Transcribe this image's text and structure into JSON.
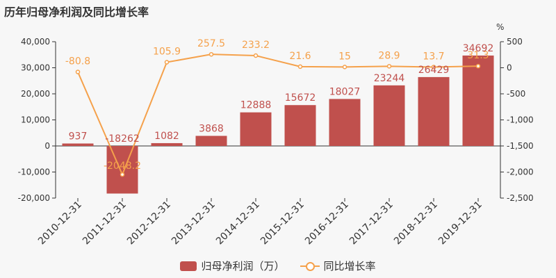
{
  "title": "历年归母净利润及同比增长率",
  "colors": {
    "bar": "#c0504d",
    "line": "#f5a14b",
    "axis": "#333333",
    "background": "#f7f7f7"
  },
  "legend": {
    "bar_label": "归母净利润（万）",
    "line_label": "同比增长率"
  },
  "chart_data": {
    "type": "bar",
    "title": "历年归母净利润及同比增长率",
    "categories": [
      "2010-12-31",
      "2011-12-31",
      "2012-12-31",
      "2013-12-31",
      "2014-12-31",
      "2015-12-31",
      "2016-12-31",
      "2017-12-31",
      "2018-12-31",
      "2019-12-31"
    ],
    "series": [
      {
        "name": "归母净利润（万）",
        "type": "bar",
        "axis": "left",
        "values": [
          937,
          -18262,
          1082,
          3868,
          12888,
          15672,
          18027,
          23244,
          26429,
          34692
        ]
      },
      {
        "name": "同比增长率",
        "type": "line",
        "axis": "right",
        "values": [
          -80.8,
          -2048.2,
          105.9,
          257.5,
          233.2,
          21.6,
          15,
          28.9,
          13.7,
          31.3
        ]
      }
    ],
    "y_left": {
      "ylim": [
        -20000,
        40000
      ],
      "ticks": [
        -20000,
        -10000,
        0,
        10000,
        20000,
        30000,
        40000
      ],
      "tick_labels": [
        "-20,000",
        "-10,000",
        "0",
        "10,000",
        "20,000",
        "30,000",
        "40,000"
      ]
    },
    "y_right": {
      "label": "%",
      "ylim": [
        -2500,
        500
      ],
      "ticks": [
        -2500,
        -2000,
        -1500,
        -1000,
        -500,
        0,
        500
      ],
      "tick_labels": [
        "-2,500",
        "-2,000",
        "-1,500",
        "-1,000",
        "-500",
        "0",
        "500"
      ]
    },
    "grid": false,
    "legend_position": "bottom"
  }
}
